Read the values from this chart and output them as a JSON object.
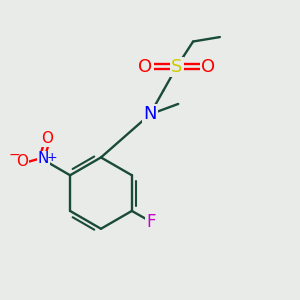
{
  "background_color": "#e8ebe8",
  "bond_color": "#1a4a3a",
  "atom_colors": {
    "N": "#0000ff",
    "O": "#ff0000",
    "S": "#cccc00",
    "F": "#cc00cc"
  },
  "figsize": [
    3.0,
    3.0
  ],
  "dpi": 100
}
